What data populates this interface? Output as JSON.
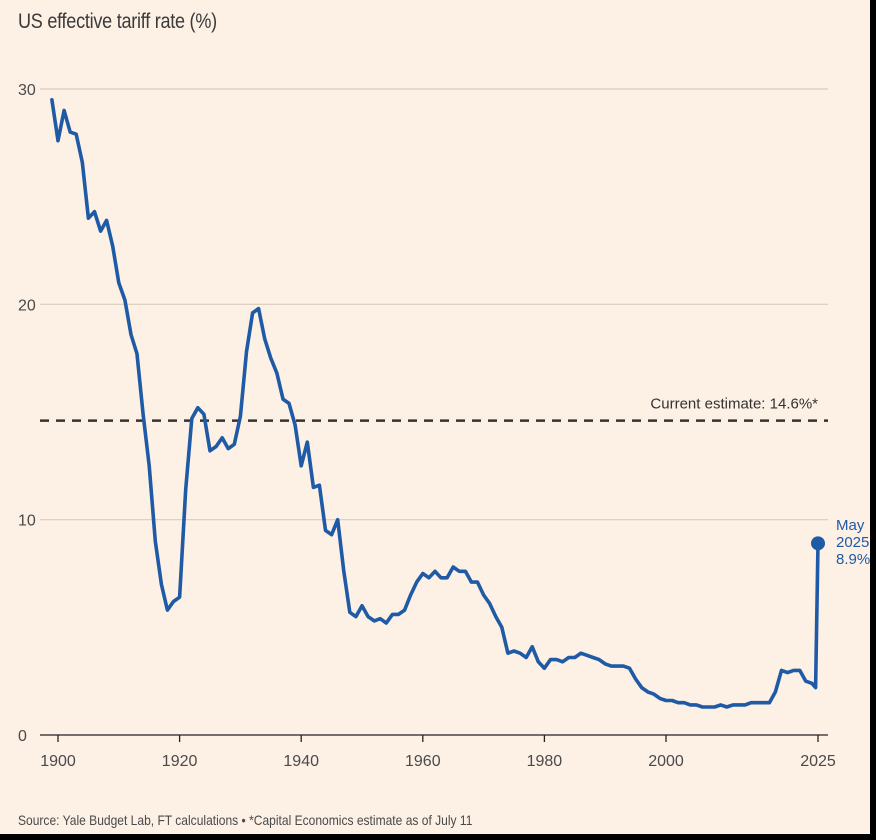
{
  "chart_data": {
    "type": "line",
    "title": "US effective tariff rate (%)",
    "source": "Source: Yale Budget Lab, FT calculations • *Capital Economics estimate as of July 11",
    "xlim": [
      1900,
      2025
    ],
    "ylim": [
      0,
      30
    ],
    "x_ticks": [
      1900,
      1920,
      1940,
      1960,
      1980,
      2000,
      2025
    ],
    "y_ticks": [
      0,
      10,
      20,
      30
    ],
    "grid": "horizontal",
    "colors": {
      "background": "#fdf0e5",
      "line": "#1f5aa6",
      "grid": "#d9cbbd",
      "reference": "#333333"
    },
    "reference_line": {
      "value": 14.6,
      "label": "Current estimate: 14.6%*"
    },
    "end_label": {
      "lines": [
        "May",
        "2025:",
        "8.9%"
      ],
      "x": 2025,
      "y": 8.9
    },
    "series": [
      {
        "x": [
          1899,
          1900,
          1901,
          1902,
          1903,
          1904,
          1905,
          1906,
          1907,
          1908,
          1909,
          1910,
          1911,
          1912,
          1913,
          1914,
          1915,
          1916,
          1917,
          1918,
          1919,
          1920,
          1921,
          1922,
          1923,
          1924,
          1925,
          1926,
          1927,
          1928,
          1929,
          1930,
          1931,
          1932,
          1933,
          1934,
          1935,
          1936,
          1937,
          1938,
          1939,
          1940,
          1941,
          1942,
          1943,
          1944,
          1945,
          1946,
          1947,
          1948,
          1949,
          1950,
          1951,
          1952,
          1953,
          1954,
          1955,
          1956,
          1957,
          1958,
          1959,
          1960,
          1961,
          1962,
          1963,
          1964,
          1965,
          1966,
          1967,
          1968,
          1969,
          1970,
          1971,
          1972,
          1973,
          1974,
          1975,
          1976,
          1977,
          1978,
          1979,
          1980,
          1981,
          1982,
          1983,
          1984,
          1985,
          1986,
          1987,
          1988,
          1989,
          1990,
          1991,
          1992,
          1993,
          1994,
          1995,
          1996,
          1997,
          1998,
          1999,
          2000,
          2001,
          2002,
          2003,
          2004,
          2005,
          2006,
          2007,
          2008,
          2009,
          2010,
          2011,
          2012,
          2013,
          2014,
          2015,
          2016,
          2017,
          2018,
          2019,
          2020,
          2021,
          2022,
          2023,
          2024,
          2024.6,
          2025
        ],
        "y": [
          29.5,
          27.6,
          29.0,
          28.0,
          27.9,
          26.6,
          24.0,
          24.3,
          23.4,
          23.9,
          22.7,
          21.0,
          20.2,
          18.6,
          17.7,
          14.9,
          12.5,
          9.0,
          7.0,
          5.8,
          6.2,
          6.4,
          11.4,
          14.7,
          15.2,
          14.9,
          13.2,
          13.4,
          13.8,
          13.3,
          13.5,
          14.8,
          17.8,
          19.6,
          19.8,
          18.4,
          17.5,
          16.8,
          15.6,
          15.4,
          14.4,
          12.5,
          13.6,
          11.5,
          11.6,
          9.5,
          9.3,
          10.0,
          7.6,
          5.7,
          5.5,
          6.0,
          5.5,
          5.3,
          5.4,
          5.2,
          5.6,
          5.6,
          5.8,
          6.5,
          7.1,
          7.5,
          7.3,
          7.6,
          7.3,
          7.3,
          7.8,
          7.6,
          7.6,
          7.1,
          7.1,
          6.5,
          6.1,
          5.5,
          5.0,
          3.8,
          3.9,
          3.8,
          3.6,
          4.1,
          3.4,
          3.1,
          3.5,
          3.5,
          3.4,
          3.6,
          3.6,
          3.8,
          3.7,
          3.6,
          3.5,
          3.3,
          3.2,
          3.2,
          3.2,
          3.1,
          2.6,
          2.2,
          2.0,
          1.9,
          1.7,
          1.6,
          1.6,
          1.5,
          1.5,
          1.4,
          1.4,
          1.3,
          1.3,
          1.3,
          1.4,
          1.3,
          1.4,
          1.4,
          1.4,
          1.5,
          1.5,
          1.5,
          1.5,
          2.0,
          3.0,
          2.9,
          3.0,
          3.0,
          2.5,
          2.4,
          2.2,
          8.9
        ]
      }
    ]
  }
}
